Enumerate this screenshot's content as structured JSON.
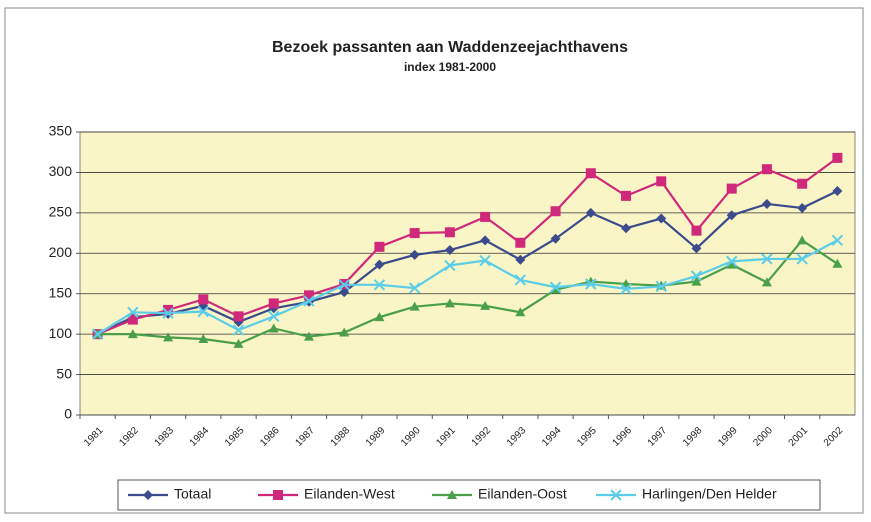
{
  "chart_data": {
    "type": "line",
    "title": "Bezoek passanten aan Waddenzeejachthavens",
    "subtitle": "index 1981-2000",
    "categories": [
      "1981",
      "1982",
      "1983",
      "1984",
      "1985",
      "1986",
      "1987",
      "1988",
      "1989",
      "1990",
      "1991",
      "1992",
      "1993",
      "1994",
      "1995",
      "1996",
      "1997",
      "1998",
      "1999",
      "2000",
      "2001",
      "2002"
    ],
    "series": [
      {
        "name": "Totaal",
        "color": "#3c4b8c",
        "marker": "diamond",
        "values": [
          100,
          121,
          125,
          135,
          115,
          132,
          140,
          152,
          186,
          198,
          204,
          216,
          192,
          218,
          250,
          231,
          243,
          206,
          247,
          261,
          256,
          277
        ]
      },
      {
        "name": "Eilanden-West",
        "color": "#d0287a",
        "marker": "square",
        "values": [
          100,
          118,
          130,
          143,
          122,
          138,
          148,
          162,
          208,
          225,
          226,
          245,
          213,
          252,
          299,
          271,
          289,
          228,
          280,
          304,
          286,
          318
        ]
      },
      {
        "name": "Eilanden-Oost",
        "color": "#4aa04a",
        "marker": "triangle",
        "values": [
          100,
          100,
          96,
          94,
          88,
          107,
          97,
          102,
          121,
          134,
          138,
          135,
          127,
          155,
          165,
          162,
          160,
          165,
          186,
          164,
          216,
          187
        ]
      },
      {
        "name": "Harlingen/Den  Helder",
        "color": "#5ccde8",
        "marker": "x",
        "values": [
          100,
          127,
          126,
          128,
          105,
          122,
          141,
          161,
          161,
          157,
          185,
          191,
          167,
          158,
          162,
          156,
          159,
          172,
          190,
          193,
          193,
          216
        ]
      }
    ],
    "ylim": [
      0,
      350
    ],
    "yticks": [
      0,
      50,
      100,
      150,
      200,
      250,
      300,
      350
    ],
    "grid": true,
    "legend": "bottom"
  }
}
